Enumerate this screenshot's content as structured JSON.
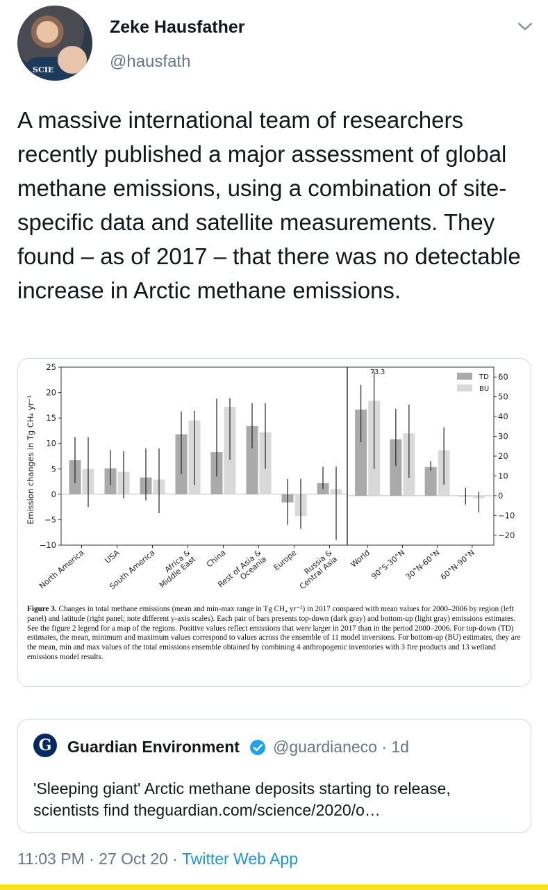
{
  "author": {
    "display_name": "Zeke Hausfather",
    "handle": "@hausfath",
    "avatar_text": "SCIE"
  },
  "tweet": {
    "text": "A massive international team of researchers recently published a major assessment of global methane emissions, using a combination of site-specific data and satellite measurements. They found – as of 2017 – that there was no detectable increase in Arctic methane emissions."
  },
  "chart_data": [
    {
      "type": "bar",
      "panel": "left",
      "ylabel": "Emission changes in Tg CH₄ yr⁻¹",
      "ylim": [
        -10,
        25
      ],
      "yticks": [
        "25",
        "20",
        "15",
        "10",
        "5",
        "0",
        "−5",
        "−10"
      ],
      "categories": [
        "North America",
        "USA",
        "South America",
        "Africa & Middle East",
        "China",
        "Rest of Asia & Oceania",
        "Europe",
        "Russia & Central Asia"
      ],
      "series": [
        {
          "name": "TD",
          "values": [
            6.7,
            5.1,
            3.3,
            11.8,
            8.3,
            13.4,
            -1.6,
            2.2
          ],
          "min": [
            2.2,
            1.8,
            -1.2,
            4.0,
            3.5,
            9.0,
            -6.0,
            1.0
          ],
          "max": [
            11.2,
            8.7,
            9.0,
            16.3,
            18.8,
            17.9,
            3.0,
            5.4
          ]
        },
        {
          "name": "BU",
          "values": [
            5.0,
            4.4,
            2.9,
            14.5,
            17.2,
            12.2,
            -4.3,
            1.0
          ],
          "min": [
            -2.5,
            -0.8,
            -3.7,
            1.8,
            6.8,
            5.0,
            -6.8,
            -9.0
          ],
          "max": [
            11.2,
            8.5,
            9.0,
            16.4,
            18.9,
            17.9,
            3.0,
            5.4
          ]
        }
      ]
    },
    {
      "type": "bar",
      "panel": "right",
      "ylim": [
        -25,
        65
      ],
      "yticks": [
        "60",
        "50",
        "40",
        "30",
        "20",
        "10",
        "0",
        "−10",
        "−20"
      ],
      "categories": [
        "World",
        "90°S-30°N",
        "30°N-60°N",
        "60°N-90°N"
      ],
      "annotations": [
        "73.3"
      ],
      "legend": {
        "placement": "top-right",
        "entries": [
          "TD",
          "BU"
        ]
      },
      "series": [
        {
          "name": "TD",
          "values": [
            43.5,
            28.5,
            14.5,
            -0.3
          ],
          "min": [
            27.0,
            15.0,
            12.5,
            -4.5
          ],
          "max": [
            56.0,
            44.0,
            17.5,
            4.0
          ]
        },
        {
          "name": "BU",
          "values": [
            48.0,
            31.5,
            23.0,
            -1.2
          ],
          "min": [
            13.5,
            9.0,
            5.5,
            -8.5
          ],
          "max": [
            73.3,
            46.0,
            34.5,
            2.0
          ]
        }
      ]
    }
  ],
  "caption": {
    "label": "Figure 3.",
    "text": "Changes in total methane emissions (mean and min-max range in Tg CH₄ yr⁻¹) in 2017 compared with mean values for 2000–2006 by region (left panel) and latitude (right panel; note different y-axis scales). Each pair of bars presents top-down (dark gray) and bottom-up (light gray) emissions estimates. See the figure 2 legend for a map of the regions. Positive values reflect emissions that were larger in 2017 than in the period 2000–2006. For top-down (TD) estimates, the mean, minimum and maximum values correspond to values across the ensemble of 11 model inversions. For bottom-up (BU) estimates, they are the mean, min and max values of the total emissions ensemble obtained by combining 4 anthropogenic inventories with 3 fire products and 13 wetland emissions model results."
  },
  "quote": {
    "logo_letter": "G",
    "name": "Guardian Environment",
    "handle": "@guardianeco · 1d",
    "text": "'Sleeping giant' Arctic methane deposits starting to release, scientists find theguardian.com/science/2020/o…"
  },
  "footer": {
    "time": "11:03 PM · 27 Oct 20 · ",
    "app": "Twitter Web App"
  },
  "colors": {
    "td_bar": "#aaaaaa",
    "bu_bar": "#d9d9d9",
    "link": "#1b95e0",
    "muted": "#657786",
    "bottom_bar": "#f6e31a"
  }
}
